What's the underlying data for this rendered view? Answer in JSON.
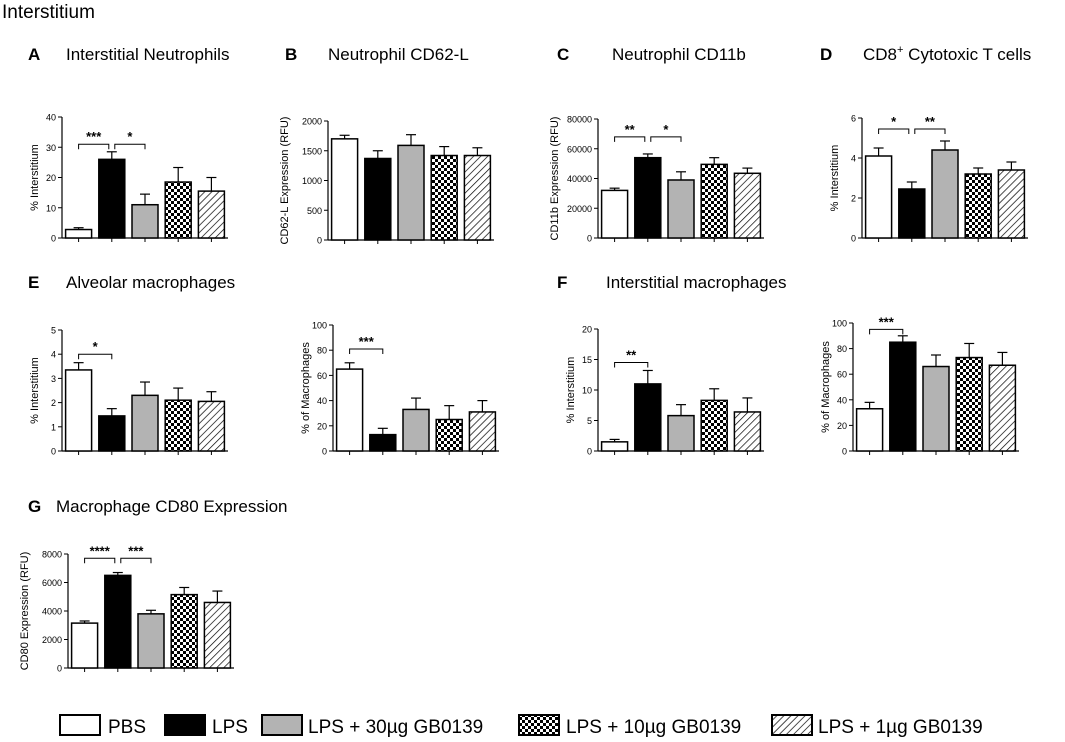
{
  "figure_title": "Interstitium",
  "legend": {
    "items": [
      {
        "label": "PBS",
        "fill": "white"
      },
      {
        "label": "LPS",
        "fill": "black"
      },
      {
        "label": "LPS + 30µg GB0139",
        "fill": "gray"
      },
      {
        "label": "LPS + 10µg GB0139",
        "fill": "checker"
      },
      {
        "label": "LPS + 1µg GB0139",
        "fill": "hatch"
      }
    ]
  },
  "panel_labels": {
    "A": "A",
    "B": "B",
    "C": "C",
    "D": "D",
    "E": "E",
    "F": "F",
    "G": "G"
  },
  "panel_titles": {
    "A": "Interstitial Neutrophils",
    "B": "Neutrophil CD62-L",
    "C": "Neutrophil CD11b",
    "D_main": "CD8",
    "D_sup": "+",
    "D_rest": " Cytotoxic T cells",
    "E": "Alveolar macrophages",
    "F": "Interstitial macrophages",
    "G": "Macrophage CD80 Expression"
  },
  "colors": {
    "white": "#ffffff",
    "black": "#000000",
    "gray": "#b3b3b3",
    "axis": "#000000"
  },
  "chart_data": [
    {
      "id": "A",
      "type": "bar",
      "ylabel": "% Interstitium",
      "ylim": [
        0,
        40
      ],
      "yticks": [
        "0",
        "10",
        "20",
        "30",
        "40"
      ],
      "tick_values": [
        0,
        10,
        20,
        30,
        40
      ],
      "values": [
        2.8,
        26,
        11,
        18.5,
        15.5
      ],
      "errors": [
        0.6,
        2.5,
        3.5,
        4.8,
        4.5
      ],
      "sig": [
        {
          "from": 0,
          "to": 1,
          "label": "***",
          "at": 31
        },
        {
          "from": 1,
          "to": 2,
          "label": "*",
          "at": 31
        }
      ]
    },
    {
      "id": "B",
      "type": "bar",
      "ylabel": "CD62-L Expression (RFU)",
      "ylim": [
        0,
        2000
      ],
      "yticks": [
        "0",
        "500",
        "1000",
        "1500",
        "2000"
      ],
      "tick_values": [
        0,
        500,
        1000,
        1500,
        2000
      ],
      "values": [
        1700,
        1370,
        1590,
        1420,
        1420
      ],
      "errors": [
        60,
        130,
        180,
        150,
        130
      ],
      "sig": []
    },
    {
      "id": "C",
      "type": "bar",
      "ylabel": "CD11b Expression (RFU)",
      "ylim": [
        0,
        80000
      ],
      "yticks": [
        "0",
        "20000",
        "40000",
        "60000",
        "80000"
      ],
      "tick_values": [
        0,
        20000,
        40000,
        60000,
        80000
      ],
      "values": [
        32000,
        54000,
        39000,
        49500,
        43500
      ],
      "errors": [
        1500,
        2500,
        5500,
        4500,
        3500
      ],
      "sig": [
        {
          "from": 0,
          "to": 1,
          "label": "**",
          "at": 68000
        },
        {
          "from": 1,
          "to": 2,
          "label": "*",
          "at": 68000
        }
      ]
    },
    {
      "id": "D",
      "type": "bar",
      "ylabel": "% Interstitium",
      "ylim": [
        0,
        6
      ],
      "yticks": [
        "0",
        "2",
        "4",
        "6"
      ],
      "tick_values": [
        0,
        2,
        4,
        6
      ],
      "values": [
        4.1,
        2.45,
        4.4,
        3.2,
        3.4
      ],
      "errors": [
        0.4,
        0.35,
        0.45,
        0.3,
        0.4
      ],
      "sig": [
        {
          "from": 0,
          "to": 1,
          "label": "*",
          "at": 5.45
        },
        {
          "from": 1,
          "to": 2,
          "label": "**",
          "at": 5.45
        }
      ]
    },
    {
      "id": "E1",
      "type": "bar",
      "ylabel": "% Interstitium",
      "ylim": [
        0,
        5
      ],
      "yticks": [
        "0",
        "1",
        "2",
        "3",
        "4",
        "5"
      ],
      "tick_values": [
        0,
        1,
        2,
        3,
        4,
        5
      ],
      "values": [
        3.35,
        1.45,
        2.3,
        2.1,
        2.05
      ],
      "errors": [
        0.3,
        0.3,
        0.55,
        0.5,
        0.4
      ],
      "sig": [
        {
          "from": 0,
          "to": 1,
          "label": "*",
          "at": 4.0
        }
      ]
    },
    {
      "id": "E2",
      "type": "bar",
      "ylabel": "% of Macrophages",
      "ylim": [
        0,
        100
      ],
      "yticks": [
        "0",
        "20",
        "40",
        "60",
        "80",
        "100"
      ],
      "tick_values": [
        0,
        20,
        40,
        60,
        80,
        100
      ],
      "values": [
        65,
        13,
        33,
        25,
        31
      ],
      "errors": [
        5,
        5,
        9,
        11,
        9
      ],
      "sig": [
        {
          "from": 0,
          "to": 1,
          "label": "***",
          "at": 81
        }
      ]
    },
    {
      "id": "F1",
      "type": "bar",
      "ylabel": "% Interstitium",
      "ylim": [
        0,
        20
      ],
      "yticks": [
        "0",
        "5",
        "10",
        "15",
        "20"
      ],
      "tick_values": [
        0,
        5,
        10,
        15,
        20
      ],
      "values": [
        1.5,
        11,
        5.8,
        8.3,
        6.4
      ],
      "errors": [
        0.4,
        2.2,
        1.8,
        1.9,
        2.3
      ],
      "sig": [
        {
          "from": 0,
          "to": 1,
          "label": "**",
          "at": 14.5
        }
      ]
    },
    {
      "id": "F2",
      "type": "bar",
      "ylabel": "% of Macrophages",
      "ylim": [
        0,
        100
      ],
      "yticks": [
        "0",
        "20",
        "40",
        "60",
        "80",
        "100"
      ],
      "tick_values": [
        0,
        20,
        40,
        60,
        80,
        100
      ],
      "values": [
        33,
        85,
        66,
        73,
        67
      ],
      "errors": [
        5,
        5,
        9,
        11,
        10
      ],
      "sig": [
        {
          "from": 0,
          "to": 1,
          "label": "***",
          "at": 95
        }
      ]
    },
    {
      "id": "G",
      "type": "bar",
      "ylabel": "CD80 Expression (RFU)",
      "ylim": [
        0,
        8000
      ],
      "yticks": [
        "0",
        "2000",
        "4000",
        "6000",
        "8000"
      ],
      "tick_values": [
        0,
        2000,
        4000,
        6000,
        8000
      ],
      "values": [
        3150,
        6500,
        3800,
        5150,
        4600
      ],
      "errors": [
        150,
        200,
        250,
        500,
        800
      ],
      "sig": [
        {
          "from": 0,
          "to": 1,
          "label": "****",
          "at": 7700
        },
        {
          "from": 1,
          "to": 2,
          "label": "***",
          "at": 7700
        }
      ]
    }
  ]
}
